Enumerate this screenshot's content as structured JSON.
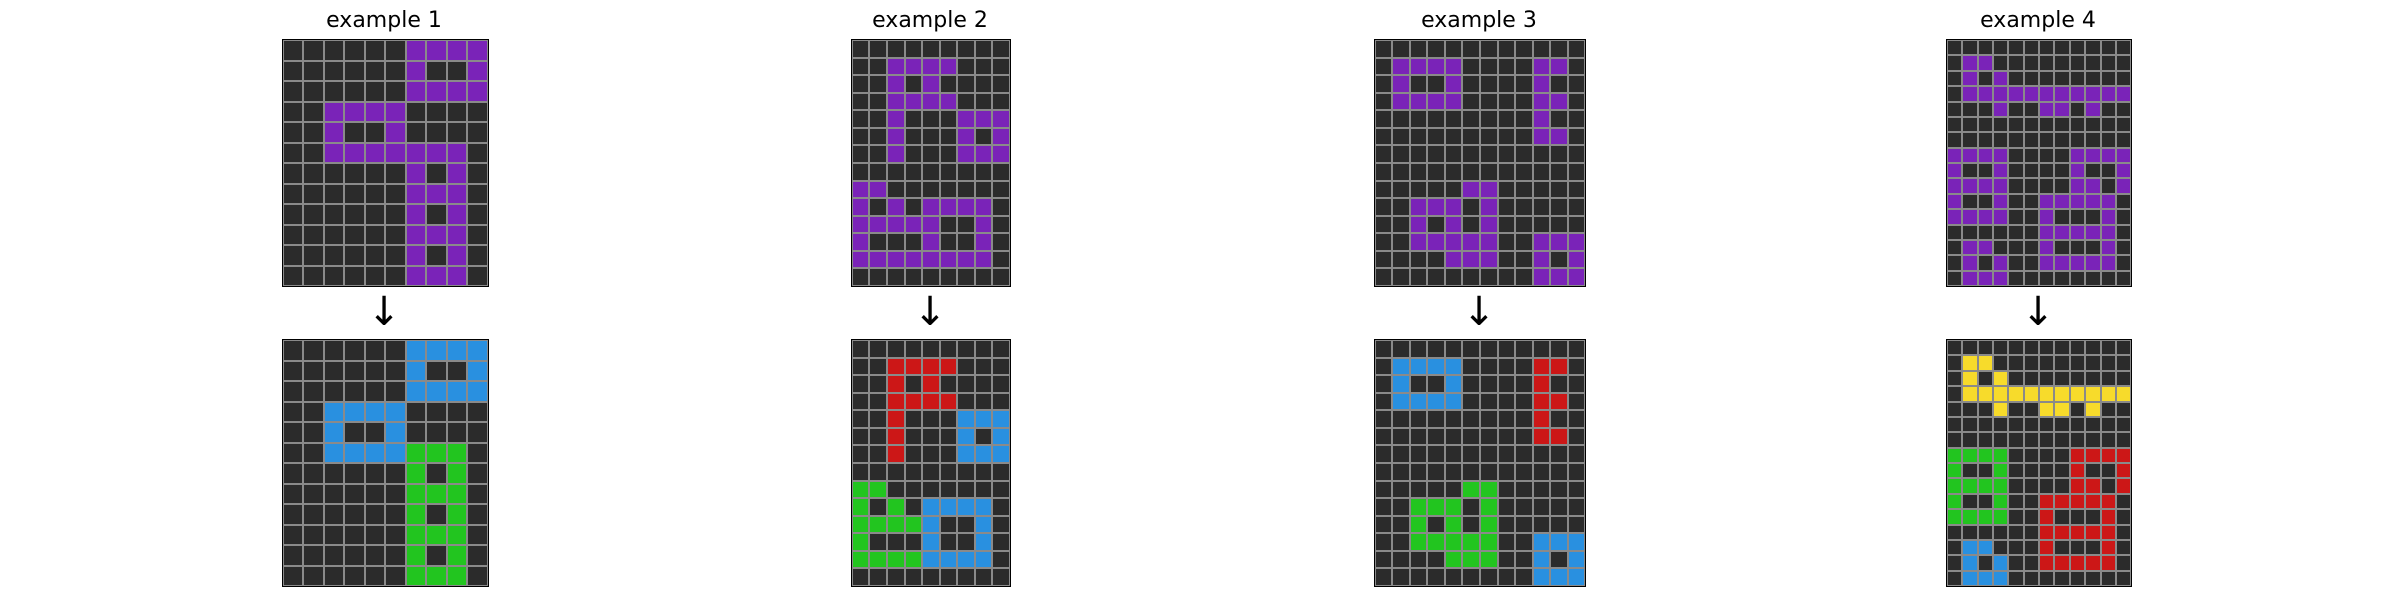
{
  "palette": {
    "0": "#2b2b2b",
    "1": "#7a23b8",
    "2": "#2990e0",
    "3": "#22c51f",
    "4": "#cc1717",
    "5": "#f7db2b"
  },
  "arrow_glyph": "↓",
  "examples": [
    {
      "title": "example 1",
      "input": [
        "0000001111",
        "0000001001",
        "0000001111",
        "0011110000",
        "0010010000",
        "0011111110",
        "0000001010",
        "0000001110",
        "0000001010",
        "0000001110",
        "0000001010",
        "0000001110"
      ],
      "output": [
        "0000002222",
        "0000002002",
        "0000002222",
        "0022220000",
        "0020020000",
        "0022223330",
        "0000003030",
        "0000003330",
        "0000003030",
        "0000003330",
        "0000003030",
        "0000003330"
      ]
    },
    {
      "title": "example 2",
      "input": [
        "000000000",
        "001111000",
        "001010000",
        "001111000",
        "001000111",
        "001000101",
        "001000111",
        "000000000",
        "110000000",
        "101011110",
        "111110010",
        "100010010",
        "111111110",
        "000000000"
      ],
      "output": [
        "000000000",
        "004444000",
        "004040000",
        "004444000",
        "004000222",
        "004000202",
        "004000222",
        "000000000",
        "330000000",
        "303022220",
        "333320020",
        "300020020",
        "333322220",
        "000000000"
      ]
    },
    {
      "title": "example 3",
      "input": [
        "000000000000",
        "011110000110",
        "010010000100",
        "011110000110",
        "000000000100",
        "000000000110",
        "000000000000",
        "000000000000",
        "000001100000",
        "001110100000",
        "001010100000",
        "001111100111",
        "000011100101",
        "000000000111"
      ],
      "output": [
        "000000000000",
        "022220000440",
        "020020000400",
        "022220000440",
        "000000000400",
        "000000000440",
        "000000000000",
        "000000000000",
        "000003300000",
        "003330300000",
        "003030300000",
        "003333300222",
        "000033300202",
        "000000000222"
      ]
    },
    {
      "title": "example 4",
      "input": [
        "000000000000",
        "011000000000",
        "010100000000",
        "011111111111",
        "000100110100",
        "000000000000",
        "000000000000",
        "111100001111",
        "100100001001",
        "111100001101",
        "100100111110",
        "111100100010",
        "000000111110",
        "011000100010",
        "010100111110",
        "011100000000"
      ],
      "output": [
        "000000000000",
        "055000000000",
        "050500000000",
        "055555555555",
        "000500550500",
        "000000000000",
        "000000000000",
        "333300004444",
        "300300004004",
        "333300004404",
        "300300444440",
        "333300400040",
        "000000444440",
        "022000400040",
        "020200444440",
        "022200000000"
      ]
    }
  ]
}
